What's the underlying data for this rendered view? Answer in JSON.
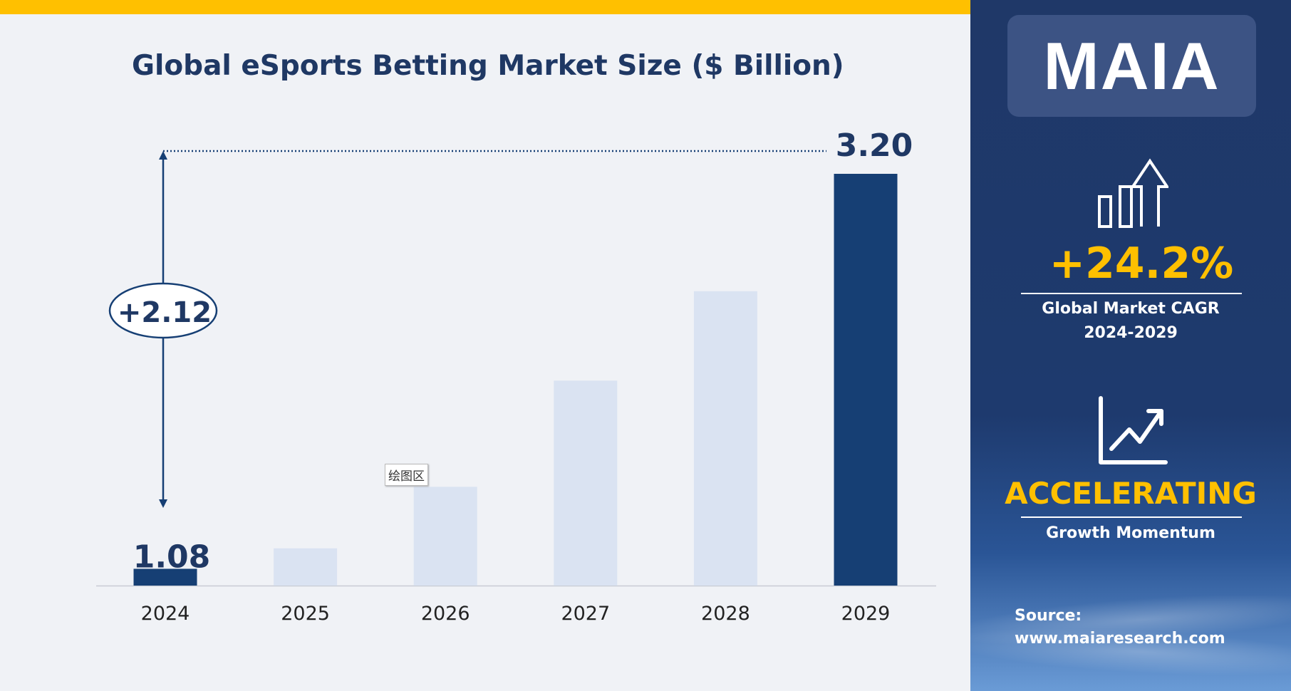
{
  "title": "Global eSports Betting Market Size ($ Billion)",
  "tooltip": "绘图区",
  "annotation": {
    "difference": "+2.12",
    "start_label": "1.08",
    "end_label": "3.20"
  },
  "colors": {
    "highlight": "#163f74",
    "muted": "#dae3f2",
    "accent": "#ffc000",
    "text": "#1f3864"
  },
  "chart_data": {
    "type": "bar",
    "title": "Global eSports Betting Market Size ($ Billion)",
    "categories": [
      "2024",
      "2025",
      "2026",
      "2027",
      "2028",
      "2029"
    ],
    "values": [
      1.08,
      1.19,
      1.52,
      2.09,
      2.57,
      3.2
    ],
    "highlighted": [
      true,
      false,
      false,
      false,
      false,
      true
    ],
    "data_labels": [
      "1.08",
      null,
      null,
      null,
      null,
      "3.20"
    ],
    "xlabel": "",
    "ylabel": "",
    "ylim": [
      0.99,
      3.3
    ],
    "grid": false
  },
  "sidebar": {
    "logo": "MAIA",
    "cagr_value": "+24.2%",
    "cagr_label_1": "Global Market CAGR",
    "cagr_label_2": "2024-2029",
    "momentum_value": "ACCELERATING",
    "momentum_label": "Growth Momentum",
    "source_label": "Source:",
    "source_url": "www.maiaresearch.com"
  }
}
